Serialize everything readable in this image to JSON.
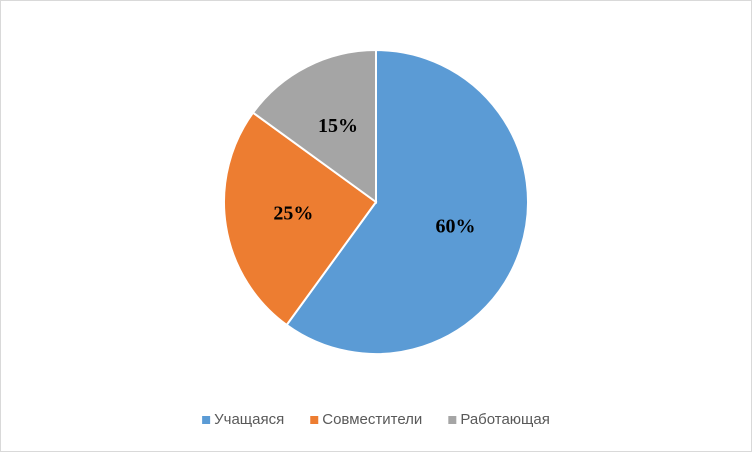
{
  "chart_data": {
    "type": "pie",
    "categories": [
      "Учащаяся",
      "Совместители",
      "Работающая"
    ],
    "values": [
      60,
      25,
      15
    ],
    "value_labels": [
      "60%",
      "25%",
      "15%"
    ],
    "colors": [
      "#5b9bd5",
      "#ed7d31",
      "#a5a5a5"
    ],
    "legend": "bottom"
  }
}
